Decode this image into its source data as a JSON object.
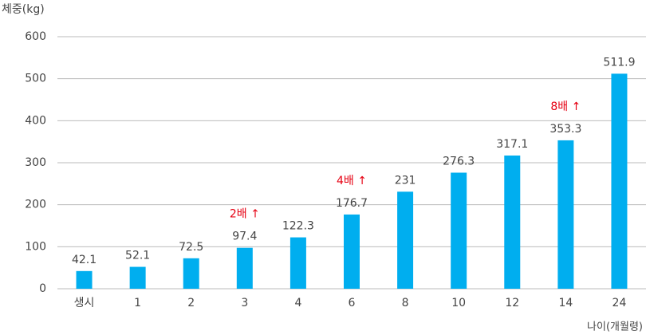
{
  "chart_data": {
    "type": "bar",
    "y_label": "체중(kg)",
    "x_label": "나이(개월령)",
    "categories": [
      "생시",
      "1",
      "2",
      "3",
      "4",
      "6",
      "8",
      "10",
      "12",
      "14",
      "24"
    ],
    "values": [
      42.1,
      52.1,
      72.5,
      97.4,
      122.3,
      176.7,
      231,
      276.3,
      317.1,
      353.3,
      511.9
    ],
    "color": "#00aeef",
    "ylim": [
      0,
      600
    ],
    "yticks": [
      0,
      100,
      200,
      300,
      400,
      500,
      600
    ],
    "grid": true,
    "annotations": [
      {
        "text": "2배 ↑",
        "category": "3",
        "color": "#e60012"
      },
      {
        "text": "4배 ↑",
        "category": "6",
        "color": "#e60012"
      },
      {
        "text": "8배 ↑",
        "category": "14",
        "color": "#e60012"
      }
    ]
  }
}
